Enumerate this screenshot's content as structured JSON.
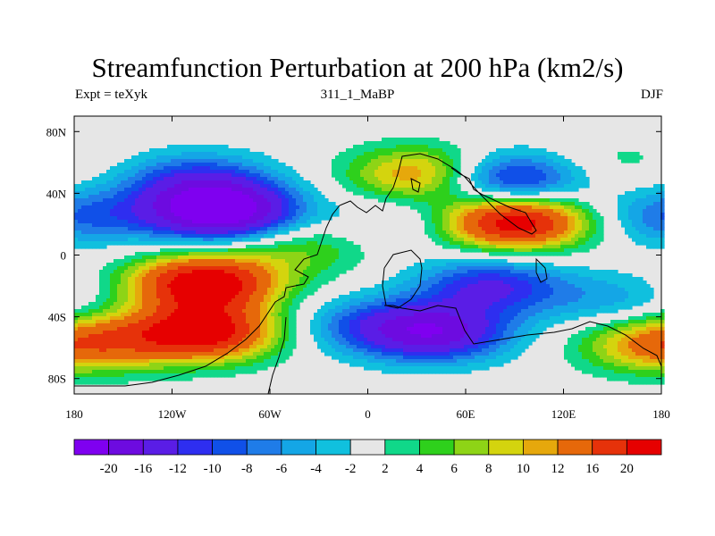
{
  "chart_data": {
    "type": "heatmap",
    "title": "Streamfunction Perturbation at 200 hPa (km2/s)",
    "left_label": "Expt = teXyk",
    "center_label": "311_1_MaBP",
    "right_label": "DJF",
    "x_ticks": [
      "180",
      "120W",
      "60W",
      "0",
      "60E",
      "120E",
      "180"
    ],
    "y_ticks": [
      "80N",
      "40N",
      "0",
      "40S",
      "80S"
    ],
    "xlim": [
      -180,
      180
    ],
    "ylim": [
      -90,
      90
    ],
    "levels": [
      -20,
      -16,
      -12,
      -10,
      -8,
      -6,
      -4,
      -2,
      2,
      4,
      6,
      8,
      10,
      12,
      16,
      20
    ],
    "level_labels": [
      "-20",
      "-16",
      "-12",
      "-10",
      "-8",
      "-6",
      "-4",
      "-2",
      "2",
      "4",
      "6",
      "8",
      "10",
      "12",
      "16",
      "20"
    ],
    "colors": [
      "#7f00f0",
      "#6d0be0",
      "#5a1de6",
      "#2e2ef0",
      "#1050e8",
      "#1f7ce8",
      "#14a6e6",
      "#10c0de",
      "#e6e6e6",
      "#10d889",
      "#2ed01c",
      "#8ed416",
      "#d4d40e",
      "#e6a80c",
      "#e6680a",
      "#e6320a",
      "#e60000"
    ],
    "features": [
      {
        "lon": -105,
        "lat": 48,
        "amp": -10
      },
      {
        "lon": -90,
        "lat": 28,
        "amp": -24
      },
      {
        "lon": -40,
        "lat": 5,
        "amp": 6
      },
      {
        "lon": -100,
        "lat": -18,
        "amp": 24
      },
      {
        "lon": -100,
        "lat": -50,
        "amp": 22
      },
      {
        "lon": -150,
        "lat": -55,
        "amp": 6
      },
      {
        "lon": 20,
        "lat": 22,
        "amp": -4
      },
      {
        "lon": 35,
        "lat": 52,
        "amp": 14
      },
      {
        "lon": 90,
        "lat": 22,
        "amp": 24
      },
      {
        "lon": 85,
        "lat": 48,
        "amp": -16
      },
      {
        "lon": 75,
        "lat": -20,
        "amp": -12
      },
      {
        "lon": 40,
        "lat": -50,
        "amp": -18
      },
      {
        "lon": -5,
        "lat": -45,
        "amp": -6
      },
      {
        "lon": 150,
        "lat": -30,
        "amp": -5
      },
      {
        "lon": 175,
        "lat": -58,
        "amp": 12
      },
      {
        "lon": -175,
        "lat": 25,
        "amp": -8
      },
      {
        "lon": 150,
        "lat": 60,
        "amp": 3
      }
    ]
  }
}
